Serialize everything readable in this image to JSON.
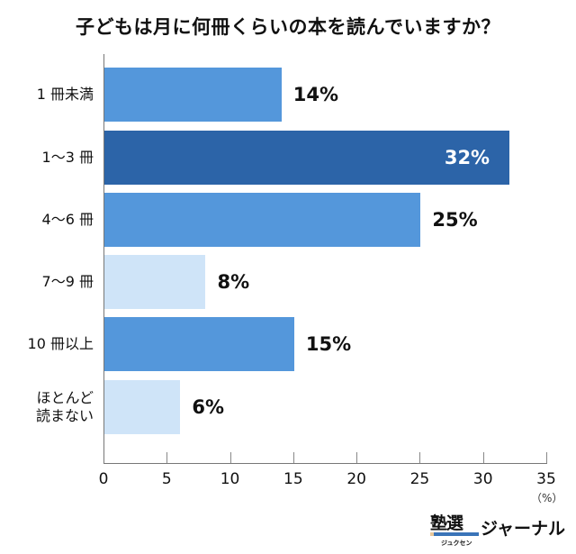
{
  "title": "子どもは月に何冊くらいの本を読んでいますか？",
  "chart_data": {
    "type": "bar",
    "orientation": "horizontal",
    "title": "子どもは月に何冊くらいの本を読んでいますか？",
    "categories": [
      "1 冊未満",
      "1〜3 冊",
      "4〜6 冊",
      "7〜9 冊",
      "10 冊以上",
      "ほとんど読まない"
    ],
    "values": [
      14,
      32,
      25,
      8,
      15,
      6
    ],
    "value_labels": [
      "14%",
      "32%",
      "25%",
      "8%",
      "15%",
      "6%"
    ],
    "colors": [
      "#5497db",
      "#2c64a8",
      "#5497db",
      "#cfe4f8",
      "#5497db",
      "#cfe4f8"
    ],
    "xlabel": "(%)",
    "ylabel": "",
    "xlim": [
      0,
      35
    ],
    "xticks": [
      0,
      5,
      10,
      15,
      20,
      25,
      30,
      35
    ],
    "grid": false,
    "legend": null
  },
  "categories_display": [
    [
      "1 冊未満"
    ],
    [
      "1〜3 冊"
    ],
    [
      "4〜6 冊"
    ],
    [
      "7〜9 冊"
    ],
    [
      "10 冊以上"
    ],
    [
      "ほとんど",
      "読まない"
    ]
  ],
  "xaxis": {
    "ticks": [
      "0",
      "5",
      "10",
      "15",
      "20",
      "25",
      "30",
      "35"
    ],
    "unit": "（%）"
  },
  "logo": {
    "kanji": "塾選",
    "kana": "ジュクセン",
    "text": "ジャーナル"
  }
}
